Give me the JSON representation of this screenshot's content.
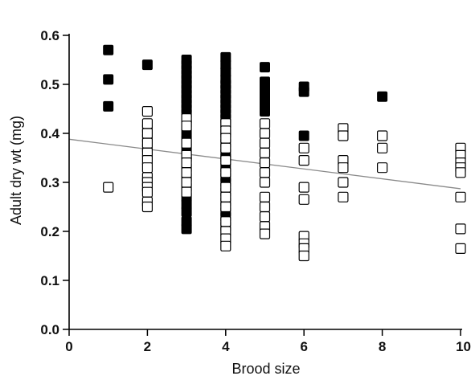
{
  "chart_data": {
    "type": "scatter",
    "title": "",
    "xlabel": "Brood size",
    "ylabel": "Adult dry wt (mg)",
    "xlim": [
      0,
      10
    ],
    "ylim": [
      0,
      0.6
    ],
    "xticks": [
      "0",
      "2",
      "4",
      "6",
      "8",
      "10"
    ],
    "yticks": [
      "0.0",
      "0.1",
      "0.2",
      "0.3",
      "0.4",
      "0.5",
      "0.6"
    ],
    "grid": false,
    "legend": "none",
    "series": [
      {
        "marker": "filled-square",
        "color": "#000000",
        "points": [
          [
            1,
            0.57
          ],
          [
            1,
            0.51
          ],
          [
            1,
            0.455
          ],
          [
            2,
            0.54
          ],
          [
            2,
            0.41
          ],
          [
            2,
            0.39
          ],
          [
            2,
            0.37
          ],
          [
            3,
            0.55
          ],
          [
            3,
            0.54
          ],
          [
            3,
            0.53
          ],
          [
            3,
            0.52
          ],
          [
            3,
            0.51
          ],
          [
            3,
            0.5
          ],
          [
            3,
            0.49
          ],
          [
            3,
            0.48
          ],
          [
            3,
            0.47
          ],
          [
            3,
            0.46
          ],
          [
            3,
            0.45
          ],
          [
            3,
            0.44
          ],
          [
            3,
            0.42
          ],
          [
            3,
            0.4
          ],
          [
            3,
            0.385
          ],
          [
            3,
            0.37
          ],
          [
            3,
            0.35
          ],
          [
            3,
            0.33
          ],
          [
            3,
            0.31
          ],
          [
            3,
            0.29
          ],
          [
            3,
            0.27
          ],
          [
            3,
            0.255
          ],
          [
            3,
            0.24
          ],
          [
            3,
            0.22
          ],
          [
            3,
            0.205
          ],
          [
            4,
            0.555
          ],
          [
            4,
            0.54
          ],
          [
            4,
            0.525
          ],
          [
            4,
            0.51
          ],
          [
            4,
            0.5
          ],
          [
            4,
            0.49
          ],
          [
            4,
            0.48
          ],
          [
            4,
            0.47
          ],
          [
            4,
            0.46
          ],
          [
            4,
            0.45
          ],
          [
            4,
            0.44
          ],
          [
            4,
            0.43
          ],
          [
            4,
            0.42
          ],
          [
            4,
            0.4
          ],
          [
            4,
            0.38
          ],
          [
            4,
            0.36
          ],
          [
            4,
            0.35
          ],
          [
            4,
            0.33
          ],
          [
            4,
            0.31
          ],
          [
            4,
            0.3
          ],
          [
            4,
            0.28
          ],
          [
            4,
            0.26
          ],
          [
            4,
            0.24
          ],
          [
            4,
            0.23
          ],
          [
            4,
            0.21
          ],
          [
            5,
            0.535
          ],
          [
            5,
            0.505
          ],
          [
            5,
            0.49
          ],
          [
            5,
            0.475
          ],
          [
            5,
            0.46
          ],
          [
            5,
            0.445
          ],
          [
            6,
            0.495
          ],
          [
            6,
            0.485
          ],
          [
            6,
            0.395
          ],
          [
            8,
            0.475
          ]
        ]
      },
      {
        "marker": "open-square",
        "color": "#000000",
        "points": [
          [
            1,
            0.29
          ],
          [
            2,
            0.445
          ],
          [
            2,
            0.42
          ],
          [
            2,
            0.4
          ],
          [
            2,
            0.38
          ],
          [
            2,
            0.36
          ],
          [
            2,
            0.345
          ],
          [
            2,
            0.33
          ],
          [
            2,
            0.31
          ],
          [
            2,
            0.3
          ],
          [
            2,
            0.29
          ],
          [
            2,
            0.28
          ],
          [
            2,
            0.26
          ],
          [
            2,
            0.25
          ],
          [
            3,
            0.43
          ],
          [
            3,
            0.415
          ],
          [
            3,
            0.38
          ],
          [
            3,
            0.355
          ],
          [
            3,
            0.34
          ],
          [
            3,
            0.32
          ],
          [
            3,
            0.3
          ],
          [
            3,
            0.28
          ],
          [
            4,
            0.42
          ],
          [
            4,
            0.405
          ],
          [
            4,
            0.39
          ],
          [
            4,
            0.37
          ],
          [
            4,
            0.345
          ],
          [
            4,
            0.32
          ],
          [
            4,
            0.29
          ],
          [
            4,
            0.27
          ],
          [
            4,
            0.25
          ],
          [
            4,
            0.22
          ],
          [
            4,
            0.2
          ],
          [
            4,
            0.185
          ],
          [
            4,
            0.17
          ],
          [
            5,
            0.42
          ],
          [
            5,
            0.4
          ],
          [
            5,
            0.38
          ],
          [
            5,
            0.36
          ],
          [
            5,
            0.34
          ],
          [
            5,
            0.32
          ],
          [
            5,
            0.3
          ],
          [
            5,
            0.27
          ],
          [
            5,
            0.25
          ],
          [
            5,
            0.23
          ],
          [
            5,
            0.21
          ],
          [
            5,
            0.195
          ],
          [
            6,
            0.37
          ],
          [
            6,
            0.345
          ],
          [
            6,
            0.29
          ],
          [
            6,
            0.265
          ],
          [
            6,
            0.19
          ],
          [
            6,
            0.175
          ],
          [
            6,
            0.165
          ],
          [
            6,
            0.15
          ],
          [
            7,
            0.41
          ],
          [
            7,
            0.395
          ],
          [
            7,
            0.345
          ],
          [
            7,
            0.33
          ],
          [
            7,
            0.3
          ],
          [
            7,
            0.27
          ],
          [
            8,
            0.395
          ],
          [
            8,
            0.37
          ],
          [
            8,
            0.33
          ],
          [
            10,
            0.37
          ],
          [
            10,
            0.355
          ],
          [
            10,
            0.34
          ],
          [
            10,
            0.33
          ],
          [
            10,
            0.32
          ],
          [
            10,
            0.27
          ],
          [
            10,
            0.205
          ],
          [
            10,
            0.165
          ]
        ]
      }
    ],
    "trendline": {
      "x": [
        0,
        10
      ],
      "y": [
        0.388,
        0.287
      ]
    }
  }
}
